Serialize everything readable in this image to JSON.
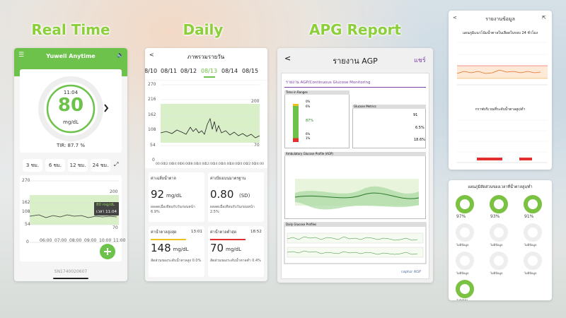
{
  "headings": [
    "Real Time",
    "Daily",
    "APG Report"
  ],
  "realtime": {
    "app_title": "Yuwell Anytime",
    "time": "11:04",
    "value": "80",
    "unit": "mg/dL",
    "tir": "TIR: 87.7 %",
    "ranges": [
      "3 ชม.",
      "6 ชม.",
      "12 ชม.",
      "24 ชม."
    ],
    "y_labels": [
      "270",
      "162",
      "108",
      "54",
      "0"
    ],
    "target_labels": [
      "200",
      "70"
    ],
    "tooltip": [
      "80 mg/dL",
      "เวลา 11:04"
    ],
    "x_labels": [
      "06:00",
      "07:00",
      "08:00",
      "09:00",
      "10:00",
      "11:00"
    ],
    "serial": "SN1740020607"
  },
  "daily": {
    "title": "ภาพรวมรายวัน",
    "dates": [
      "08/10",
      "08/11",
      "08/12",
      "08/13",
      "08/14",
      "08/15"
    ],
    "y_labels": [
      "270",
      "216",
      "162",
      "108",
      "54",
      "0"
    ],
    "target_labels": [
      "200",
      "70"
    ],
    "x_labels": [
      "00:00",
      "02:00",
      "04:00",
      "06:00",
      "08:00",
      "10:00",
      "12:00",
      "14:00",
      "16:00",
      "18:00",
      "20:00",
      "22:00",
      "24:00"
    ],
    "cards": [
      {
        "label": "ค่าเฉลี่ยน้ำตาล",
        "value": "92",
        "unit": "mg/dL",
        "note": "ผลลดเมื่อเทียบกับวันก่อนหน้า 6.9%"
      },
      {
        "label": "ค่าเบี่ยงเบนมาตรฐาน",
        "value": "0.80",
        "unit": "(SD)",
        "note": "ผลลดเมื่อเทียบกับวันก่อนหน้า 2.5%"
      },
      {
        "label": "ค่าน้ำตาลสูงสุด",
        "time": "13:01",
        "value": "148",
        "unit": "mg/dL",
        "note": "สัดส่วนของระดับน้ำตาลสูง 0.0%"
      },
      {
        "label": "ค่าน้ำตาลต่ำสุด",
        "time": "18:52",
        "value": "70",
        "unit": "mg/dL",
        "note": "สัดส่วนของระดับน้ำตาลต่ำ 0.4%"
      }
    ]
  },
  "agp": {
    "title": "รายงาน AGP",
    "share": "แชร์",
    "report_title": "รายงาน AGP/Continuous Glucose Monitoring",
    "sections": [
      "Time in Ranges",
      "Glucose Metrics",
      "Ambulatory Glucose Profile (AGP)",
      "Daily Glucose Profiles"
    ],
    "tir_values": [
      "0%",
      "6%",
      "87%",
      "6%",
      "1%"
    ],
    "metrics": [
      "91",
      "6.5%",
      "18.6%"
    ],
    "footer": "captur AGP"
  },
  "report_panel": {
    "title": "รายงานข้อมูล",
    "chart1_title": "แผนภูมิแนวโน้มน้ำตาลในเลือดในรอบ 24 ชั่วโมง",
    "chart2_title": "กราฟบริเวณที่ระดับน้ำตาลสูง/ต่ำ"
  },
  "ratio_panel": {
    "title": "แผนภูมิสัดส่วนของเวลาที่น้ำตาลสูง/ต่ำ",
    "donuts": [
      "97%",
      "93%",
      "91%",
      "ไม่มีข้อมูล",
      "ไม่มีข้อมูล",
      "ไม่มีข้อมูล",
      "ไม่มีข้อมูล",
      "ไม่มีข้อมูล",
      "ไม่มีข้อมูล",
      "100%"
    ]
  }
}
